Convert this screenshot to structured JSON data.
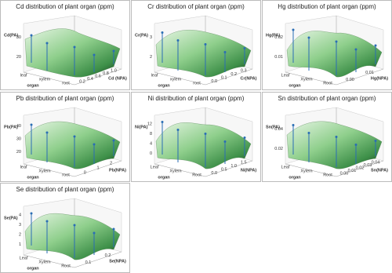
{
  "panels": [
    {
      "title": "Cd distribution of plant organ (ppm)",
      "z_label": "Cd(PA)",
      "z_ticks": [
        "20",
        "30"
      ],
      "organ_label": "organ",
      "organs": [
        "leaf",
        "xylem",
        "root"
      ],
      "x_label": "Cd (NPA)",
      "x_ticks": [
        "0.2",
        "0.4",
        "0.6",
        "0.8",
        "1.0"
      ]
    },
    {
      "title": "Cr distribution of plant organ (ppm)",
      "z_label": "Cr(PA)",
      "z_ticks": [
        "2",
        "3"
      ],
      "organ_label": "organ",
      "organs": [
        "leaf",
        "xylem",
        "root"
      ],
      "x_label": "Cr(NPA)",
      "x_ticks": [
        "0.0",
        "0.1",
        "0.2",
        "0.3"
      ]
    },
    {
      "title": "Hg distribution of plant organ (ppm)",
      "z_label": "Hg(PA)",
      "z_ticks": [
        "0.01",
        "0.02"
      ],
      "organ_label": "organ",
      "organs": [
        "Leaf",
        "Xylem",
        "Root"
      ],
      "x_label": "Hg(NPA)",
      "x_ticks": [
        "0.00",
        "0.01"
      ]
    },
    {
      "title": "Pb distribution of plant organ (ppm)",
      "z_label": "Pb(PA)",
      "z_ticks": [
        "20",
        "30",
        "40"
      ],
      "organ_label": "organ",
      "organs": [
        "leaf",
        "Xylem",
        "root"
      ],
      "x_label": "Pb(NPA)",
      "x_ticks": [
        "0",
        "1",
        "2"
      ]
    },
    {
      "title": "Ni distribution of plant organ (ppm)",
      "z_label": "Ni(PA)",
      "z_ticks": [
        "0",
        "4",
        "8",
        "12"
      ],
      "organ_label": "organ",
      "organs": [
        "Leaf",
        "Xylem",
        "Root"
      ],
      "x_label": "Ni(NPA)",
      "x_ticks": [
        "0.0",
        "0.5",
        "1.0",
        "1.5"
      ]
    },
    {
      "title": "Sn distribution of plant organ (ppm)",
      "z_label": "Sn(PA)",
      "z_ticks": [
        "0.02",
        "0.04"
      ],
      "organ_label": "organ",
      "organs": [
        "Leaf",
        "Xylem",
        "Root"
      ],
      "x_label": "Sn(NPA)",
      "x_ticks": [
        "0.00",
        "0.01",
        "0.02",
        "0.03",
        "0.04"
      ]
    },
    {
      "title": "Se distribution of plant organ (ppm)",
      "z_label": "Se(PA)",
      "z_ticks": [
        "1",
        "2",
        "3",
        "4"
      ],
      "organ_label": "organ",
      "organs": [
        "Leaf",
        "Xylem",
        "Root"
      ],
      "x_label": "Se(NPA)",
      "x_ticks": [
        "0.1",
        "0.2"
      ]
    }
  ]
}
